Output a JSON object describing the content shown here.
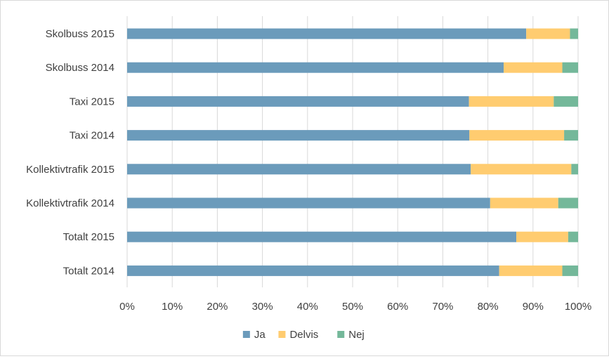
{
  "chart_data": {
    "type": "bar",
    "orientation": "horizontal",
    "stacked": "percent",
    "categories": [
      "Skolbuss 2015",
      "Skolbuss 2014",
      "Taxi 2015",
      "Taxi 2014",
      "Kollektivtrafik 2015",
      "Kollektivtrafik 2014",
      "Totalt 2015",
      "Totalt 2014"
    ],
    "series": [
      {
        "name": "Ja",
        "color": "#6b9bbb",
        "values": [
          88.5,
          83.5,
          75.8,
          75.9,
          76.2,
          80.5,
          86.3,
          82.5
        ]
      },
      {
        "name": "Delvis",
        "color": "#ffcc70",
        "values": [
          9.7,
          13.0,
          18.8,
          21.0,
          22.3,
          15.1,
          11.5,
          14.0
        ]
      },
      {
        "name": "Nej",
        "color": "#74b89a",
        "values": [
          1.8,
          3.5,
          5.4,
          3.1,
          1.5,
          4.4,
          2.2,
          3.5
        ]
      }
    ],
    "xticks": [
      "0%",
      "10%",
      "20%",
      "30%",
      "40%",
      "50%",
      "60%",
      "70%",
      "80%",
      "90%",
      "100%"
    ],
    "xlim": [
      0,
      100
    ],
    "grid": "vertical",
    "legend": "bottom"
  }
}
